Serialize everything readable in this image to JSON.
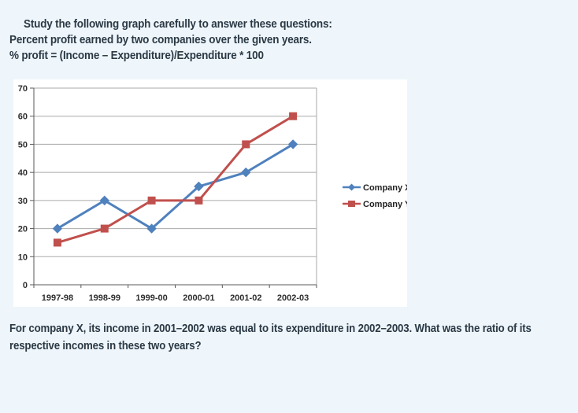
{
  "page": {
    "header_line1": "Study the following graph carefully to answer these questions:",
    "header_line2": "Percent profit earned by two companies over the given years.",
    "header_line3": "% profit = (Income – Expenditure)/Expenditure * 100",
    "question": "For company X, its income in 2001–2002 was equal to its expenditure in 2002–2003. What was the ratio of its respective incomes in these two years?"
  },
  "chart_data": {
    "type": "line",
    "title": "",
    "xlabel": "",
    "ylabel": "",
    "categories": [
      "1997-98",
      "1998-99",
      "1999-00",
      "2000-01",
      "2001-02",
      "2002-03"
    ],
    "series": [
      {
        "name": "Company X",
        "values": [
          20,
          30,
          20,
          35,
          40,
          50
        ],
        "color": "#4f81bd",
        "marker": "diamond"
      },
      {
        "name": "Company Y",
        "values": [
          15,
          20,
          30,
          30,
          50,
          60
        ],
        "color": "#c0504d",
        "marker": "square"
      }
    ],
    "ylim": [
      0,
      70
    ],
    "ytick_step": 10,
    "grid": true,
    "legend_position": "right"
  },
  "theme": {
    "page_background": "#eef6fb",
    "panel_background": "#ffffff",
    "heading_text": "#2b3945",
    "grid_line": "#aaaaaa",
    "axis_line": "#595959",
    "tick_label": "#2e2e2e"
  }
}
